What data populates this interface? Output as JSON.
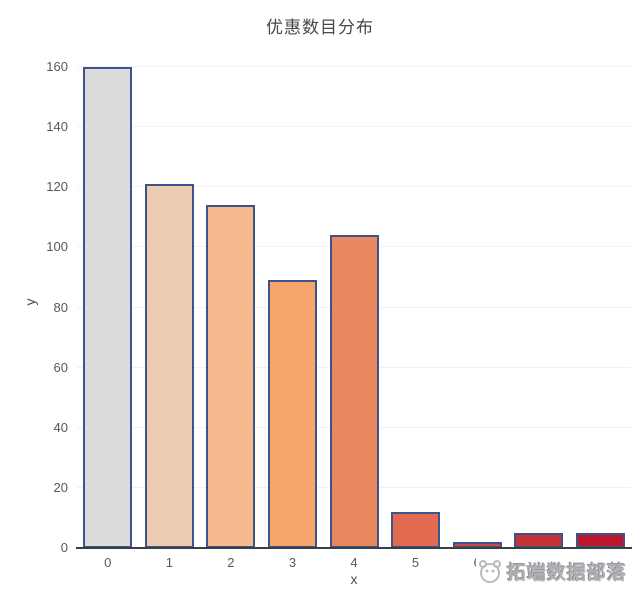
{
  "chart_data": {
    "type": "bar",
    "title": "优惠数目分布",
    "xlabel": "x",
    "ylabel": "y",
    "categories": [
      "0",
      "1",
      "2",
      "3",
      "4",
      "5",
      "6",
      "7",
      "8"
    ],
    "values": [
      160,
      121,
      114,
      89,
      104,
      12,
      2,
      5,
      5
    ],
    "ylim": [
      0,
      160
    ],
    "yticks": [
      0,
      20,
      40,
      60,
      80,
      100,
      120,
      140,
      160
    ],
    "grid": true,
    "legend": false,
    "bar_colors": [
      "#dcdcdc",
      "#edcbb0",
      "#f5ba8d",
      "#f6a56b",
      "#e9875f",
      "#e16a51",
      "#cc4b43",
      "#c23436",
      "#bb172c"
    ],
    "bar_border_color": "#3d538c",
    "gridline_color": "#f1f2f5",
    "axis_line_color": "#3b3e42",
    "tick_color": "#585858",
    "title_color": "#48484c"
  },
  "watermark": {
    "text": "拓端数据部落",
    "logo": "panda-logo"
  }
}
